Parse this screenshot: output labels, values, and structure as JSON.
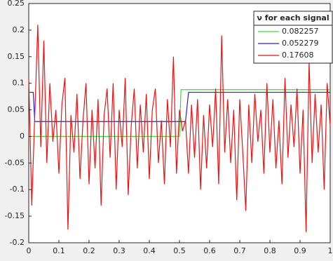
{
  "chart_data": {
    "type": "line",
    "legend_title": "ν for each signal",
    "legend_position": "northeast",
    "xlim": [
      0,
      1
    ],
    "ylim": [
      -0.2,
      0.25
    ],
    "xticks": [
      0,
      0.1,
      0.2,
      0.3,
      0.4,
      0.5,
      0.6,
      0.7,
      0.8,
      0.9,
      1
    ],
    "yticks": [
      -0.2,
      -0.15,
      -0.1,
      -0.05,
      0,
      0.05,
      0.1,
      0.15,
      0.2,
      0.25
    ],
    "grid": false,
    "series": [
      {
        "name": "0.082257",
        "color": "#33dd33",
        "x": [
          0,
          0.5,
          0.505,
          1
        ],
        "values": [
          0,
          0,
          0.088,
          0.088
        ]
      },
      {
        "name": "0.052279",
        "color": "#2222dd",
        "x": [
          0,
          0.015,
          0.02,
          0.52,
          0.53,
          1
        ],
        "values": [
          0.083,
          0.083,
          0.028,
          0.028,
          0.083,
          0.083
        ]
      },
      {
        "name": "0.17608",
        "color": "#ee1111",
        "x": [
          0,
          0.01,
          0.02,
          0.03,
          0.04,
          0.05,
          0.06,
          0.07,
          0.08,
          0.09,
          0.1,
          0.11,
          0.12,
          0.13,
          0.14,
          0.15,
          0.16,
          0.17,
          0.18,
          0.19,
          0.2,
          0.21,
          0.22,
          0.23,
          0.24,
          0.25,
          0.26,
          0.27,
          0.28,
          0.29,
          0.3,
          0.31,
          0.32,
          0.33,
          0.34,
          0.35,
          0.36,
          0.37,
          0.38,
          0.39,
          0.4,
          0.41,
          0.42,
          0.43,
          0.44,
          0.45,
          0.46,
          0.47,
          0.48,
          0.49,
          0.5,
          0.51,
          0.52,
          0.53,
          0.54,
          0.55,
          0.56,
          0.57,
          0.58,
          0.59,
          0.6,
          0.61,
          0.62,
          0.63,
          0.64,
          0.65,
          0.66,
          0.67,
          0.68,
          0.69,
          0.7,
          0.71,
          0.72,
          0.73,
          0.74,
          0.75,
          0.76,
          0.77,
          0.78,
          0.79,
          0.8,
          0.81,
          0.82,
          0.83,
          0.84,
          0.85,
          0.86,
          0.87,
          0.88,
          0.89,
          0.9,
          0.91,
          0.92,
          0.93,
          0.94,
          0.95,
          0.96,
          0.97,
          0.98,
          0.99,
          1
        ],
        "values": [
          0.11,
          -0.13,
          0.04,
          0.21,
          -0.02,
          0.18,
          -0.05,
          0.1,
          -0.01,
          0.05,
          -0.07,
          0.06,
          0.11,
          -0.175,
          0.04,
          -0.03,
          0.08,
          -0.08,
          0.03,
          0.1,
          -0.09,
          0.05,
          -0.06,
          0.07,
          -0.13,
          0.04,
          0.09,
          -0.04,
          0.1,
          -0.1,
          0.05,
          -0.02,
          0.11,
          -0.11,
          0.02,
          0.09,
          -0.06,
          0.06,
          -0.03,
          0.08,
          -0.08,
          0.05,
          0.09,
          -0.05,
          0.03,
          -0.09,
          0.07,
          -0.02,
          0.15,
          -0.07,
          0.05,
          0.01,
          0.03,
          -0.07,
          0.06,
          -0.04,
          0.07,
          -0.1,
          0.04,
          -0.06,
          0.06,
          -0.02,
          0.09,
          -0.09,
          0.19,
          -0.03,
          0.07,
          -0.05,
          0.05,
          -0.12,
          0.07,
          -0.03,
          -0.14,
          0.06,
          -0.05,
          0.08,
          -0.01,
          0.05,
          -0.07,
          0.1,
          -0.03,
          0.07,
          -0.06,
          0.03,
          -0.09,
          0.11,
          -0.04,
          0.06,
          -0.02,
          0.09,
          -0.07,
          0.05,
          -0.18,
          0.14,
          -0.05,
          0.08,
          -0.03,
          0.06,
          -0.1,
          0.1,
          0.02
        ]
      }
    ]
  }
}
